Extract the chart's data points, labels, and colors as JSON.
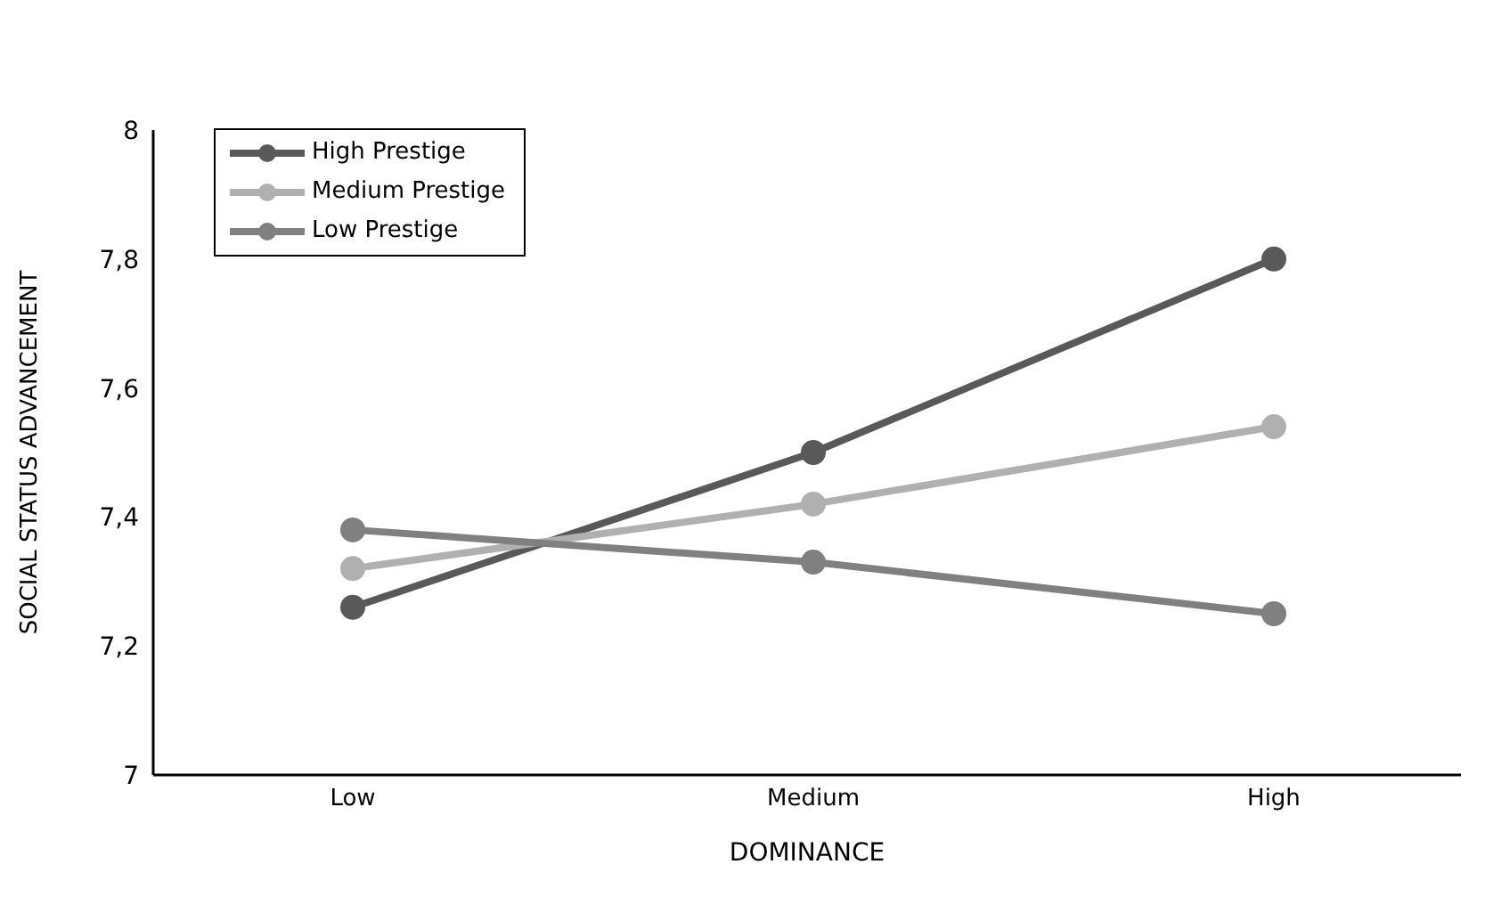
{
  "chart_data": {
    "type": "line",
    "xlabel": "DOMINANCE",
    "ylabel": "SOCIAL STATUS ADVANCEMENT",
    "categories": [
      "Low",
      "Medium",
      "High"
    ],
    "series": [
      {
        "name": "High Prestige",
        "color": "#595959",
        "values": [
          7.26,
          7.5,
          7.8
        ]
      },
      {
        "name": "Medium Prestige",
        "color": "#b0b0b0",
        "values": [
          7.32,
          7.42,
          7.54
        ]
      },
      {
        "name": "Low Prestige",
        "color": "#808080",
        "values": [
          7.38,
          7.33,
          7.25
        ]
      }
    ],
    "ylim": [
      7,
      8
    ],
    "yticks": [
      {
        "value": 7,
        "label": "7"
      },
      {
        "value": 7.2,
        "label": "7,2"
      },
      {
        "value": 7.4,
        "label": "7,4"
      },
      {
        "value": 7.6,
        "label": "7,6"
      },
      {
        "value": 7.8,
        "label": "7,8"
      },
      {
        "value": 8,
        "label": "8"
      }
    ],
    "marker": "circle",
    "line_style": "solid",
    "legend": "top left",
    "grid": false
  }
}
